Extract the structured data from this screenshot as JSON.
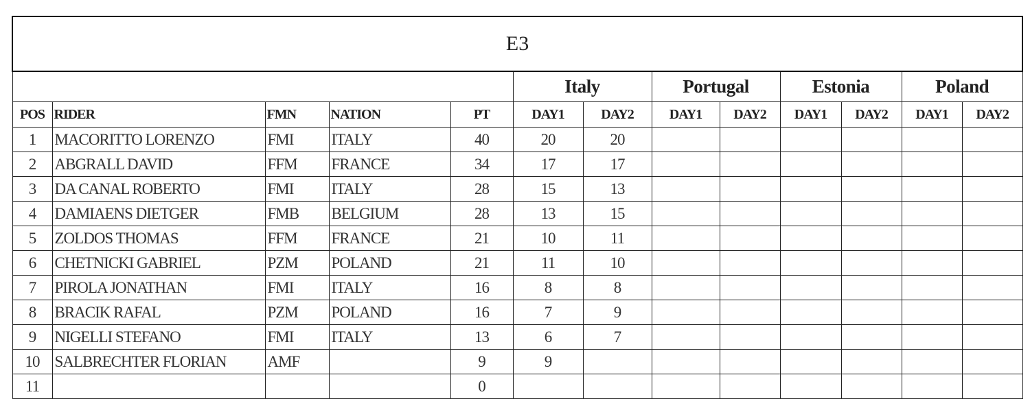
{
  "title": "E3",
  "countries": [
    "Italy",
    "Portugal",
    "Estonia",
    "Poland"
  ],
  "headers": {
    "pos": "POS",
    "rider": "RIDER",
    "fmn": "FMN",
    "nation": "NATION",
    "pt": "PT",
    "day1": "DAY1",
    "day2": "DAY2"
  },
  "rows": [
    {
      "pos": "1",
      "rider": "MACORITTO LORENZO",
      "fmn": "FMI",
      "nation": "ITALY",
      "pt": "40",
      "italy_d1": "20",
      "italy_d2": "20"
    },
    {
      "pos": "2",
      "rider": "ABGRALL DAVID",
      "fmn": "FFM",
      "nation": "FRANCE",
      "pt": "34",
      "italy_d1": "17",
      "italy_d2": "17"
    },
    {
      "pos": "3",
      "rider": "DA CANAL ROBERTO",
      "fmn": "FMI",
      "nation": "ITALY",
      "pt": "28",
      "italy_d1": "15",
      "italy_d2": "13"
    },
    {
      "pos": "4",
      "rider": "DAMIAENS DIETGER",
      "fmn": "FMB",
      "nation": "BELGIUM",
      "pt": "28",
      "italy_d1": "13",
      "italy_d2": "15"
    },
    {
      "pos": "5",
      "rider": "ZOLDOS THOMAS",
      "fmn": "FFM",
      "nation": "FRANCE",
      "pt": "21",
      "italy_d1": "10",
      "italy_d2": "11"
    },
    {
      "pos": "6",
      "rider": "CHETNICKI GABRIEL",
      "fmn": "PZM",
      "nation": "POLAND",
      "pt": "21",
      "italy_d1": "11",
      "italy_d2": "10"
    },
    {
      "pos": "7",
      "rider": "PIROLA JONATHAN",
      "fmn": "FMI",
      "nation": "ITALY",
      "pt": "16",
      "italy_d1": "8",
      "italy_d2": "8"
    },
    {
      "pos": "8",
      "rider": "BRACIK RAFAL",
      "fmn": "PZM",
      "nation": "POLAND",
      "pt": "16",
      "italy_d1": "7",
      "italy_d2": "9"
    },
    {
      "pos": "9",
      "rider": "NIGELLI STEFANO",
      "fmn": "FMI",
      "nation": "ITALY",
      "pt": "13",
      "italy_d1": "6",
      "italy_d2": "7"
    },
    {
      "pos": "10",
      "rider": "SALBRECHTER FLORIAN",
      "fmn": "AMF",
      "nation": "",
      "pt": "9",
      "italy_d1": "9",
      "italy_d2": ""
    },
    {
      "pos": "11",
      "rider": "",
      "fmn": "",
      "nation": "",
      "pt": "0",
      "italy_d1": "",
      "italy_d2": ""
    }
  ]
}
